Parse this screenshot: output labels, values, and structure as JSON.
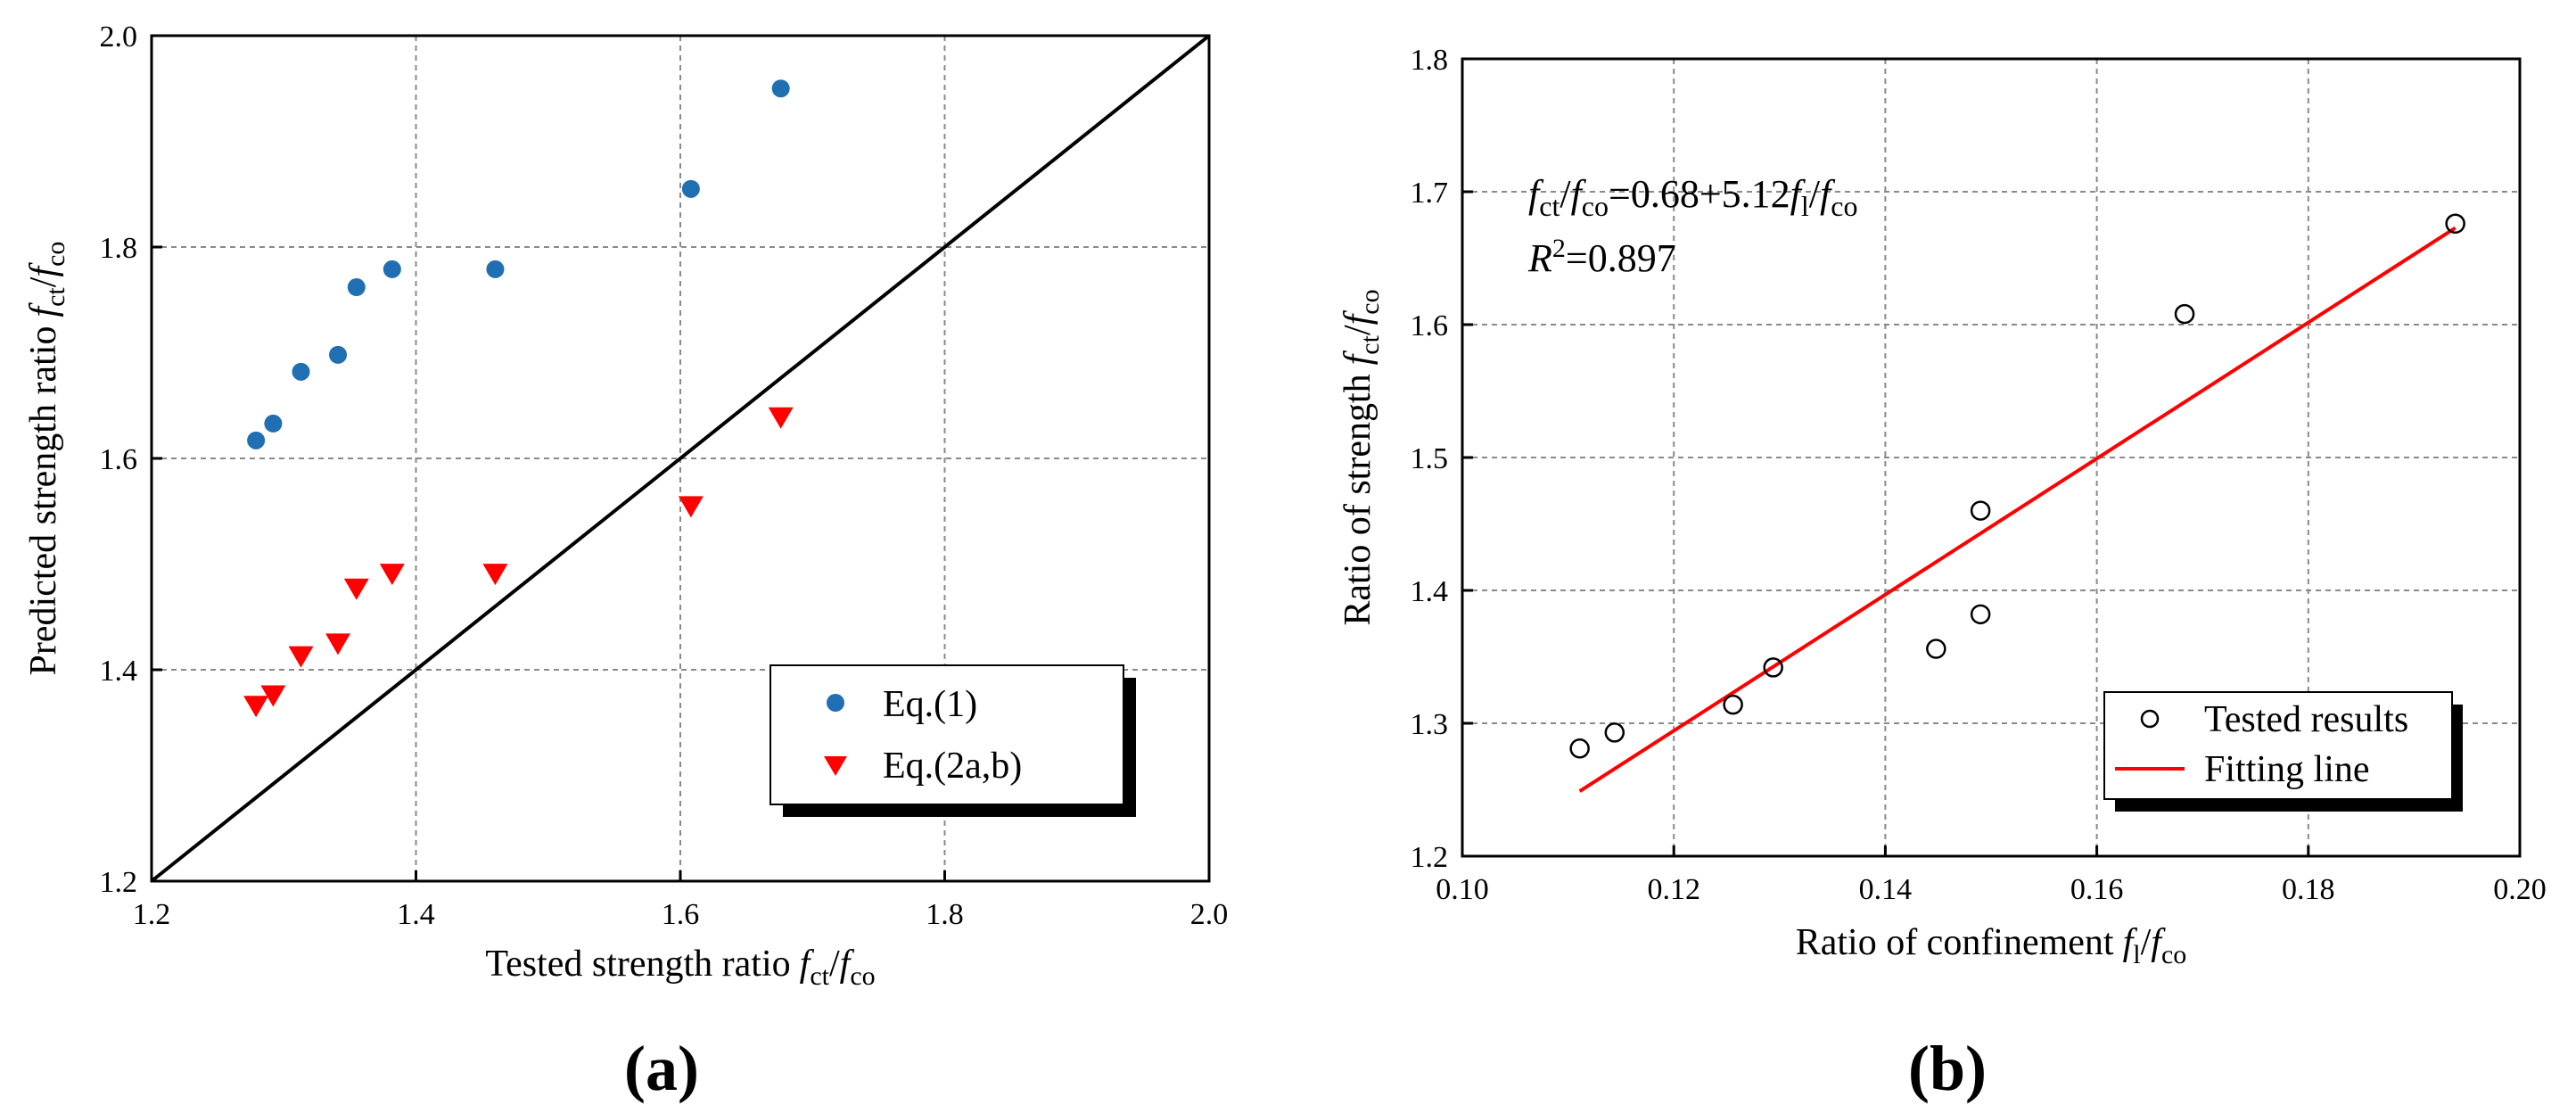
{
  "colors": {
    "series_blue": "#1f6fb2",
    "series_red": "#ff0000",
    "fit_line": "#ff0000",
    "axis": "#000000",
    "grid": "#8a8a8a"
  },
  "panels": {
    "a": {
      "label": "(a)",
      "xlabel": "Tested strength ratio",
      "ylabel": "Predicted strength ratio",
      "ratio": {
        "f1": "f",
        "s1": "ct",
        "slash": "/",
        "f2": "f",
        "s2": "co"
      },
      "legend": {
        "entries": [
          "Eq.(1)",
          "Eq.(2a,b)"
        ]
      }
    },
    "b": {
      "label": "(b)",
      "xlabel": "Ratio of confinement",
      "xratio": {
        "f1": "f",
        "s1": "l",
        "slash": "/",
        "f2": "f",
        "s2": "co"
      },
      "ylabel": "Ratio of strength",
      "yratio": {
        "f1": "f",
        "s1": "ct",
        "slash": "/",
        "f2": "f",
        "s2": "co"
      },
      "equation": {
        "lhs_f": "f",
        "lhs_ct": "ct",
        "slash": "/",
        "lhs_f2": "f",
        "lhs_co": "co",
        "rhs": "=0.68+5.12",
        "rhs_f": "f",
        "rhs_l": "l",
        "rhs_slash": "/",
        "rhs_f2": "f",
        "rhs_co": "co"
      },
      "r2": {
        "R": "R",
        "sup": "2",
        "value": "=0.897"
      },
      "legend": {
        "entries": [
          "Tested results",
          "Fitting line"
        ]
      }
    }
  },
  "chart_data": [
    {
      "type": "scatter",
      "panel": "a",
      "xlabel": "Tested strength ratio fct/fco",
      "ylabel": "Predicted strength ratio fct/fco",
      "xlim": [
        1.2,
        2.0
      ],
      "ylim": [
        1.2,
        2.0
      ],
      "xticks": [
        1.2,
        1.4,
        1.6,
        1.8,
        2.0
      ],
      "yticks": [
        1.2,
        1.4,
        1.6,
        1.8,
        2.0
      ],
      "xtick_labels": [
        "1.2",
        "1.4",
        "1.6",
        "1.8",
        "2.0"
      ],
      "ytick_labels": [
        "1.2",
        "1.4",
        "1.6",
        "1.8",
        "2.0"
      ],
      "grid": true,
      "legend_position": "bottom-right",
      "reference_line": {
        "x": [
          1.2,
          2.0
        ],
        "y": [
          1.2,
          2.0
        ]
      },
      "series": [
        {
          "name": "Eq.(1)",
          "marker": "circle",
          "x": [
            1.279,
            1.292,
            1.313,
            1.341,
            1.355,
            1.382,
            1.46,
            1.608,
            1.676
          ],
          "y": [
            1.617,
            1.633,
            1.682,
            1.698,
            1.762,
            1.779,
            1.779,
            1.855,
            1.95
          ]
        },
        {
          "name": "Eq.(2a,b)",
          "marker": "triangle-down",
          "x": [
            1.279,
            1.292,
            1.313,
            1.341,
            1.355,
            1.382,
            1.46,
            1.608,
            1.676
          ],
          "y": [
            1.366,
            1.376,
            1.413,
            1.425,
            1.477,
            1.491,
            1.491,
            1.555,
            1.639
          ]
        }
      ]
    },
    {
      "type": "scatter",
      "panel": "b",
      "xlabel": "Ratio of confinement fl/fco",
      "ylabel": "Ratio of strength fct/fco",
      "xlim": [
        0.1,
        0.2
      ],
      "ylim": [
        1.2,
        1.8
      ],
      "xticks": [
        0.1,
        0.12,
        0.14,
        0.16,
        0.18,
        0.2
      ],
      "yticks": [
        1.2,
        1.3,
        1.4,
        1.5,
        1.6,
        1.7,
        1.8
      ],
      "xtick_labels": [
        "0.10",
        "0.12",
        "0.14",
        "0.16",
        "0.18",
        "0.20"
      ],
      "ytick_labels": [
        "1.2",
        "1.3",
        "1.4",
        "1.5",
        "1.6",
        "1.7",
        "1.8"
      ],
      "grid": true,
      "legend_position": "bottom-right",
      "series": [
        {
          "name": "Tested results",
          "marker": "open-circle",
          "x": [
            0.1111,
            0.1144,
            0.1256,
            0.1294,
            0.1448,
            0.149,
            0.149,
            0.1683,
            0.1939
          ],
          "y": [
            1.281,
            1.293,
            1.314,
            1.342,
            1.356,
            1.382,
            1.46,
            1.608,
            1.676
          ]
        }
      ],
      "fit_line": {
        "name": "Fitting line",
        "intercept": 0.68,
        "slope": 5.12,
        "x_range": [
          0.1111,
          0.1939
        ]
      },
      "annotation": {
        "equation": "fct/fco=0.68+5.12fl/fco",
        "r_squared": "R2=0.897"
      }
    }
  ]
}
